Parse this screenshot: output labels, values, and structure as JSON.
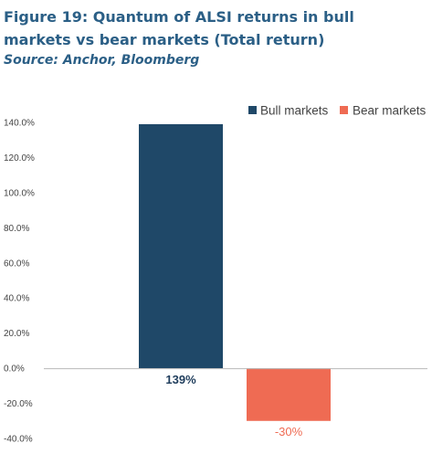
{
  "figure": {
    "title": "Figure 19: Quantum of ALSI returns in bull markets vs bear markets (Total return)",
    "source": "Source: Anchor, Bloomberg"
  },
  "chart_data": {
    "type": "bar",
    "categories": [
      "Bull markets",
      "Bear markets"
    ],
    "values": [
      139,
      -30
    ],
    "data_labels": [
      "139%",
      "-30%"
    ],
    "colors": [
      "#1f4868",
      "#ef6b53"
    ],
    "label_colors": [
      "#1f3d5c",
      "#ef6b53"
    ],
    "ylim": [
      -40,
      140
    ],
    "yticks": [
      140,
      120,
      100,
      80,
      60,
      40,
      20,
      0,
      -20,
      -40
    ],
    "ytick_labels": [
      "140.0%",
      "120.0%",
      "100.0%",
      "80.0%",
      "60.0%",
      "40.0%",
      "20.0%",
      "0.0%",
      "-20.0%",
      "-40.0%"
    ],
    "legend": [
      {
        "name": "Bull markets",
        "color": "#1f4868"
      },
      {
        "name": "Bear markets",
        "color": "#ef6b53"
      }
    ],
    "legend_position": "top-right",
    "grid": false
  }
}
